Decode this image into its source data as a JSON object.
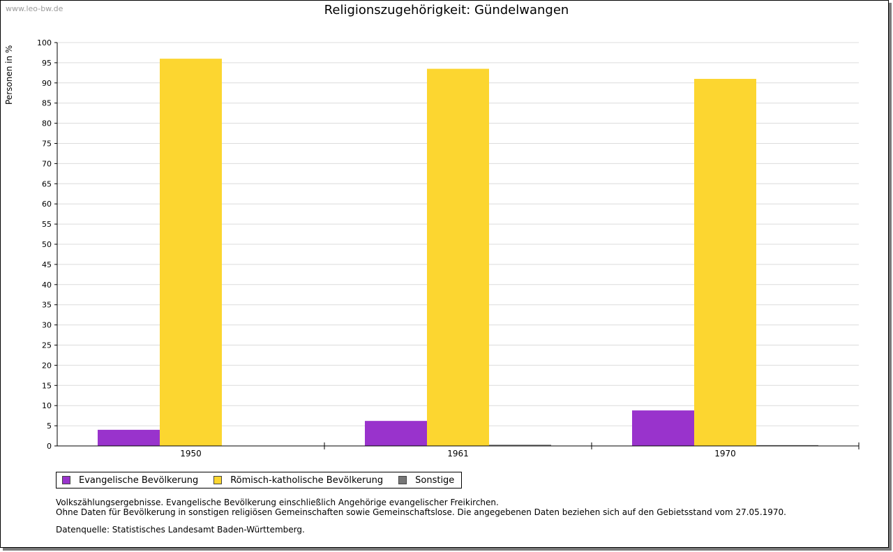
{
  "watermark": "www.leo-bw.de",
  "chart_data": {
    "type": "bar",
    "title": "Religionszugehörigkeit: Gündelwangen",
    "xlabel": "",
    "ylabel": "Personen in %",
    "ylim": [
      0,
      100
    ],
    "ytick_step": 5,
    "grid": true,
    "categories": [
      "1950",
      "1961",
      "1970"
    ],
    "series": [
      {
        "name": "Evangelische Bevölkerung",
        "color": "#9933cc",
        "values": [
          4.0,
          6.2,
          8.8
        ]
      },
      {
        "name": "Römisch-katholische Bevölkerung",
        "color": "#fcd630",
        "values": [
          96.0,
          93.5,
          91.0
        ]
      },
      {
        "name": "Sonstige",
        "color": "#777777",
        "values": [
          0.0,
          0.3,
          0.2
        ]
      }
    ],
    "legend_position": "bottom-left"
  },
  "notes": {
    "line1": "Volkszählungsergebnisse. Evangelische Bevölkerung einschließlich Angehörige evangelischer Freikirchen.",
    "line2": "Ohne Daten für Bevölkerung in sonstigen religiösen Gemeinschaften sowie Gemeinschaftslose. Die angegebenen Daten beziehen sich auf den Gebietsstand vom 27.05.1970.",
    "source": "Datenquelle: Statistisches Landesamt Baden-Württemberg."
  }
}
